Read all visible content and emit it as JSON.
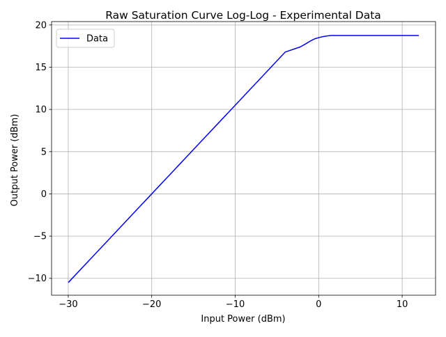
{
  "chart_data": {
    "type": "line",
    "title": "Raw Saturation Curve Log-Log - Experimental Data",
    "xlabel": "Input Power (dBm)",
    "ylabel": "Output Power (dBm)",
    "xlim": [
      -32,
      14
    ],
    "ylim": [
      -12,
      20.4
    ],
    "xticks": [
      -30,
      -20,
      -10,
      0,
      10
    ],
    "yticks": [
      -10,
      -5,
      0,
      5,
      10,
      15,
      20
    ],
    "xtick_labels": [
      "−30",
      "−20",
      "−10",
      "0",
      "10"
    ],
    "ytick_labels": [
      "−10",
      "−5",
      "0",
      "5",
      "10",
      "15",
      "20"
    ],
    "grid": true,
    "legend_position": "top-left",
    "series": [
      {
        "name": "Data",
        "color": "#0000ff",
        "x": [
          -30,
          -28,
          -26,
          -24,
          -22,
          -20,
          -18,
          -16,
          -14,
          -12,
          -10,
          -8,
          -6,
          -4,
          -2.2,
          -1.5,
          -1.0,
          -0.5,
          0,
          0.5,
          1.0,
          1.5,
          2.0,
          3,
          5,
          7,
          9,
          12
        ],
        "y": [
          -10.5,
          -8.4,
          -6.3,
          -4.2,
          -2.1,
          0,
          2.1,
          4.2,
          6.3,
          8.4,
          10.5,
          12.6,
          14.7,
          16.8,
          17.4,
          17.8,
          18.1,
          18.35,
          18.5,
          18.62,
          18.7,
          18.75,
          18.75,
          18.75,
          18.75,
          18.75,
          18.75,
          18.75
        ]
      }
    ]
  }
}
